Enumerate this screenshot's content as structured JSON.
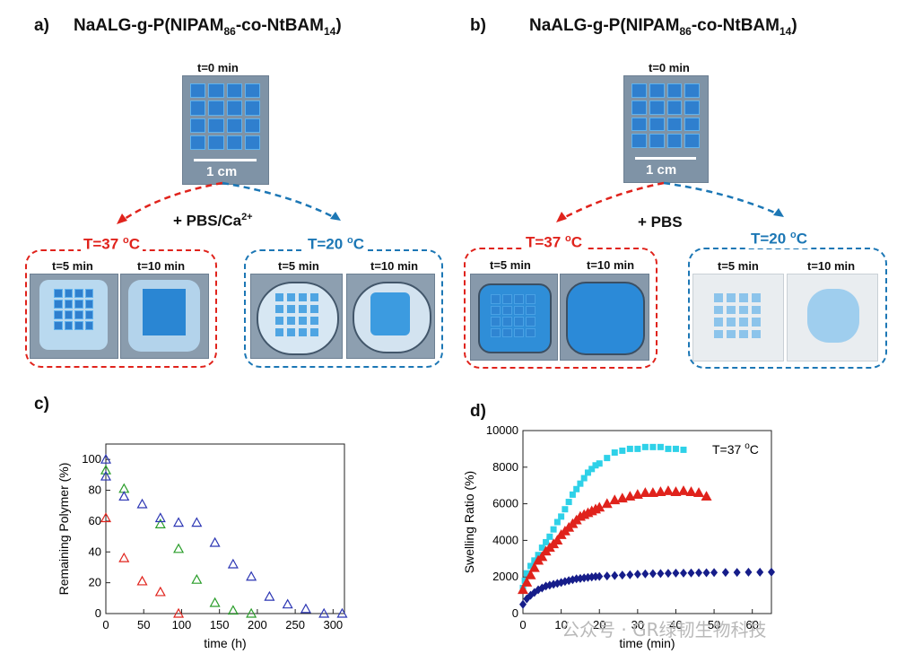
{
  "panel_a": {
    "label": "a)",
    "title_main": "NaALG-g-P(NIPAM",
    "title_sub1": "86",
    "title_mid": "-co-NtBAM",
    "title_sub2": "14",
    "title_end": ")",
    "t0_label": "t=0 min",
    "scale_label": "1 cm",
    "medium_label": "+ PBS/Ca",
    "medium_sup": "2+",
    "hot_temp": "T=37 ",
    "hot_unit": "o",
    "hot_c": "C",
    "cold_temp": "T=20 ",
    "cold_unit": "o",
    "cold_c": "C",
    "t5": "t=5 min",
    "t10": "t=10 min"
  },
  "panel_b": {
    "label": "b)",
    "title_main": "NaALG-g-P(NIPAM",
    "title_sub1": "86",
    "title_mid": "-co-NtBAM",
    "title_sub2": "14",
    "title_end": ")",
    "t0_label": "t=0 min",
    "scale_label": "1 cm",
    "medium_label": "+ PBS",
    "hot_temp": "T=37 ",
    "hot_unit": "o",
    "hot_c": "C",
    "cold_temp": "T=20 ",
    "cold_unit": "o",
    "cold_c": "C",
    "t5": "t=5 min",
    "t10": "t=10 min"
  },
  "colors": {
    "hot": "#e0231c",
    "cold": "#1c77b5"
  },
  "watermark": "公众号 · GR绿韧生物科技",
  "chart_data": [
    {
      "panel": "c)",
      "type": "scatter",
      "xlabel": "time (h)",
      "ylabel": "Remaining Polymer (%)",
      "xlim": [
        0,
        315
      ],
      "ylim": [
        0,
        110
      ],
      "xticks": [
        0,
        50,
        100,
        150,
        200,
        250,
        300
      ],
      "yticks": [
        0,
        20,
        40,
        60,
        80,
        100
      ],
      "grid": false,
      "marker": "open-triangle",
      "series": [
        {
          "color": "#e0231c",
          "x": [
            0,
            24,
            48,
            72,
            96
          ],
          "y": [
            62,
            36,
            21,
            14,
            0
          ]
        },
        {
          "color": "#2a9d2a",
          "x": [
            0,
            24,
            72,
            96,
            120,
            144,
            168,
            192
          ],
          "y": [
            93,
            81,
            58,
            42,
            22,
            7,
            2,
            0
          ]
        },
        {
          "color": "#2b35b3",
          "x": [
            0,
            0,
            24,
            48,
            72,
            96,
            120,
            144,
            168,
            192,
            216,
            240,
            264,
            288,
            312
          ],
          "y": [
            100,
            89,
            76,
            71,
            62,
            59,
            59,
            46,
            32,
            24,
            11,
            6,
            3,
            0,
            0
          ]
        }
      ]
    },
    {
      "panel": "d)",
      "type": "scatter",
      "annotation": "T=37 ",
      "annotation_unit": "o",
      "annotation_c": "C",
      "xlabel": "time (min)",
      "ylabel": "Swelling Ratio (%)",
      "xlim": [
        0,
        65
      ],
      "ylim": [
        0,
        10000
      ],
      "xticks": [
        0,
        10,
        20,
        30,
        40,
        50,
        60
      ],
      "yticks": [
        0,
        2000,
        4000,
        6000,
        8000,
        10000
      ],
      "grid": false,
      "series": [
        {
          "color": "#2ed1e8",
          "marker": "square",
          "x": [
            0,
            0.5,
            1,
            2,
            3,
            4,
            5,
            6,
            7,
            8,
            9,
            10,
            11,
            12,
            13,
            14,
            15,
            16,
            17,
            18,
            19,
            20,
            22,
            24,
            26,
            28,
            30,
            32,
            34,
            36,
            38,
            40,
            42
          ],
          "y": [
            1400,
            1800,
            2200,
            2600,
            2900,
            3200,
            3600,
            3900,
            4200,
            4600,
            5000,
            5300,
            5700,
            6100,
            6500,
            6800,
            7100,
            7400,
            7700,
            7900,
            8100,
            8200,
            8500,
            8800,
            8900,
            9000,
            9000,
            9100,
            9100,
            9100,
            9000,
            9000,
            8950
          ]
        },
        {
          "color": "#e0231c",
          "marker": "triangle",
          "x": [
            0,
            1,
            2,
            3,
            4,
            5,
            6,
            7,
            8,
            9,
            10,
            11,
            12,
            13,
            14,
            15,
            16,
            17,
            18,
            19,
            20,
            22,
            24,
            26,
            28,
            30,
            32,
            34,
            36,
            38,
            40,
            42,
            44,
            46,
            48
          ],
          "y": [
            1300,
            1700,
            2100,
            2500,
            2900,
            3100,
            3400,
            3600,
            3800,
            4000,
            4300,
            4500,
            4700,
            4900,
            5100,
            5300,
            5400,
            5500,
            5600,
            5700,
            5800,
            6000,
            6200,
            6300,
            6400,
            6500,
            6600,
            6600,
            6650,
            6700,
            6650,
            6700,
            6650,
            6600,
            6400
          ]
        },
        {
          "color": "#161d8a",
          "marker": "diamond",
          "x": [
            0,
            1,
            2,
            3,
            4,
            5,
            6,
            7,
            8,
            9,
            10,
            11,
            12,
            13,
            14,
            15,
            16,
            17,
            18,
            19,
            20,
            22,
            24,
            26,
            28,
            30,
            32,
            34,
            36,
            38,
            40,
            42,
            44,
            46,
            48,
            50,
            53,
            56,
            59,
            62,
            65
          ],
          "y": [
            500,
            800,
            1000,
            1150,
            1300,
            1400,
            1500,
            1550,
            1600,
            1650,
            1700,
            1750,
            1800,
            1850,
            1900,
            1920,
            1950,
            1970,
            2000,
            2020,
            2030,
            2050,
            2080,
            2100,
            2120,
            2150,
            2170,
            2180,
            2190,
            2200,
            2210,
            2210,
            2220,
            2230,
            2230,
            2240,
            2250,
            2250,
            2260,
            2260,
            2270
          ]
        }
      ]
    }
  ]
}
